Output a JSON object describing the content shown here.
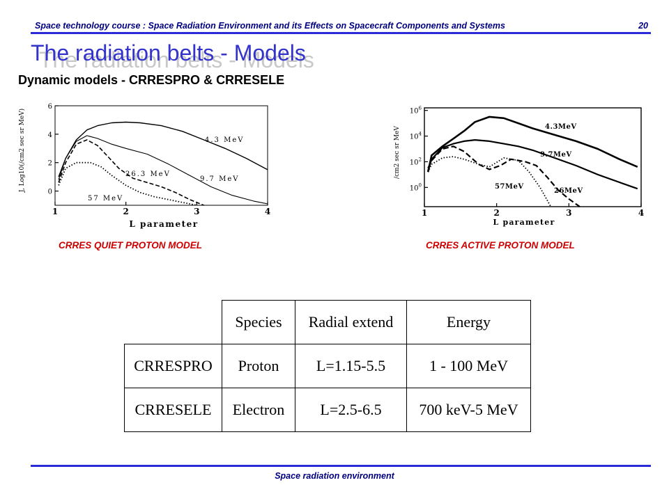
{
  "header": {
    "course_title": "Space technology course : Space Radiation Environment and its Effects on Spacecraft Components and Systems",
    "page_number": "20"
  },
  "slide": {
    "title": "The radiation belts - Models",
    "subtitle": "Dynamic models - CRRESPRO & CRRESELE"
  },
  "chart_data": [
    {
      "type": "line",
      "ylabel": "J, Log10(/cm2 sec sr MeV)",
      "xlabel": "L parameter",
      "xlim": [
        1,
        4
      ],
      "ylim": [
        -1,
        6
      ],
      "x_ticks": [
        "1",
        "2",
        "3",
        "4"
      ],
      "y_ticks": [
        "6",
        "4",
        "2",
        "0"
      ],
      "series": [
        {
          "name": "4.3 MeV",
          "x": [
            1.05,
            1.15,
            1.3,
            1.45,
            1.6,
            1.8,
            2.0,
            2.2,
            2.5,
            2.8,
            3.1,
            3.4,
            3.7,
            4.0
          ],
          "y": [
            1.0,
            2.3,
            3.6,
            4.3,
            4.6,
            4.8,
            4.85,
            4.8,
            4.6,
            4.2,
            3.6,
            3.0,
            2.3,
            1.5
          ]
        },
        {
          "name": "9.7 MeV",
          "x": [
            1.05,
            1.15,
            1.3,
            1.45,
            1.6,
            1.8,
            2.0,
            2.3,
            2.6,
            2.9,
            3.2,
            3.5,
            3.8,
            4.0
          ],
          "y": [
            0.8,
            2.3,
            3.5,
            3.9,
            3.7,
            3.3,
            3.0,
            2.6,
            1.9,
            1.1,
            0.3,
            -0.3,
            -0.7,
            -0.9
          ]
        },
        {
          "name": "26.3 MeV",
          "x": [
            1.05,
            1.15,
            1.3,
            1.45,
            1.6,
            1.75,
            1.9,
            2.1,
            2.3,
            2.5,
            2.7,
            2.9,
            3.1
          ],
          "y": [
            0.6,
            2.0,
            3.3,
            3.6,
            3.2,
            2.4,
            1.6,
            0.9,
            0.6,
            0.3,
            -0.1,
            -0.6,
            -1.0
          ]
        },
        {
          "name": "57 MeV",
          "x": [
            1.05,
            1.15,
            1.3,
            1.5,
            1.65,
            1.8,
            2.0,
            2.2,
            2.4,
            2.6,
            2.8,
            3.0
          ],
          "y": [
            0.4,
            1.6,
            2.0,
            2.0,
            1.7,
            1.1,
            0.4,
            -0.1,
            -0.4,
            -0.6,
            -0.8,
            -1.0
          ]
        }
      ],
      "caption": "CRRES QUIET PROTON MODEL"
    },
    {
      "type": "line",
      "ylabel": "/cm2 sec sr MeV",
      "xlabel": "L parameter",
      "xlim": [
        1,
        4
      ],
      "ylim": [
        -1.5,
        6.2
      ],
      "y_scale": "log",
      "x_ticks": [
        "1",
        "2",
        "3",
        "4"
      ],
      "y_ticks": [
        "10^6",
        "10^4",
        "10^2",
        "10^0"
      ],
      "series": [
        {
          "name": "4.3MeV",
          "x": [
            1.05,
            1.1,
            1.25,
            1.4,
            1.55,
            1.7,
            1.9,
            2.1,
            2.3,
            2.5,
            2.8,
            3.1,
            3.4,
            3.7,
            3.95
          ],
          "y": [
            1.2,
            2.5,
            3.2,
            3.8,
            4.4,
            5.1,
            5.5,
            5.4,
            5.0,
            4.6,
            4.1,
            3.6,
            3.0,
            2.2,
            1.6
          ]
        },
        {
          "name": "9.7MeV",
          "x": [
            1.05,
            1.1,
            1.25,
            1.4,
            1.55,
            1.7,
            1.9,
            2.1,
            2.3,
            2.5,
            2.8,
            3.1,
            3.4,
            3.7,
            3.95
          ],
          "y": [
            1.3,
            2.2,
            3.1,
            3.4,
            3.6,
            3.7,
            3.6,
            3.4,
            3.2,
            2.9,
            2.3,
            1.7,
            1.0,
            0.4,
            -0.1
          ]
        },
        {
          "name": "26MeV",
          "x": [
            1.05,
            1.1,
            1.25,
            1.4,
            1.55,
            1.75,
            1.9,
            2.05,
            2.2,
            2.4,
            2.55,
            2.7,
            2.85,
            3.0,
            3.15
          ],
          "y": [
            1.5,
            2.1,
            3.0,
            3.2,
            2.8,
            1.8,
            1.4,
            1.7,
            2.2,
            2.0,
            1.7,
            0.8,
            -0.2,
            -0.9,
            -1.5
          ]
        },
        {
          "name": "57MeV",
          "x": [
            1.05,
            1.1,
            1.25,
            1.4,
            1.55,
            1.75,
            1.9,
            2.1,
            2.3,
            2.45,
            2.6,
            2.75
          ],
          "y": [
            1.2,
            1.8,
            2.3,
            2.4,
            2.2,
            1.8,
            1.6,
            2.3,
            2.1,
            1.2,
            0.0,
            -1.5
          ]
        }
      ],
      "caption": "CRRES ACTIVE PROTON MODEL"
    }
  ],
  "table": {
    "headers": [
      "Species",
      "Radial extend",
      "Energy"
    ],
    "rows": [
      {
        "name": "CRRESPRO",
        "species": "Proton",
        "radial": "L=1.15-5.5",
        "energy": "1 - 100 MeV"
      },
      {
        "name": "CRRESELE",
        "species": "Electron",
        "radial": "L=2.5-6.5",
        "energy": "700 keV-5 MeV"
      }
    ]
  },
  "footer": {
    "text": "Space radiation environment"
  }
}
